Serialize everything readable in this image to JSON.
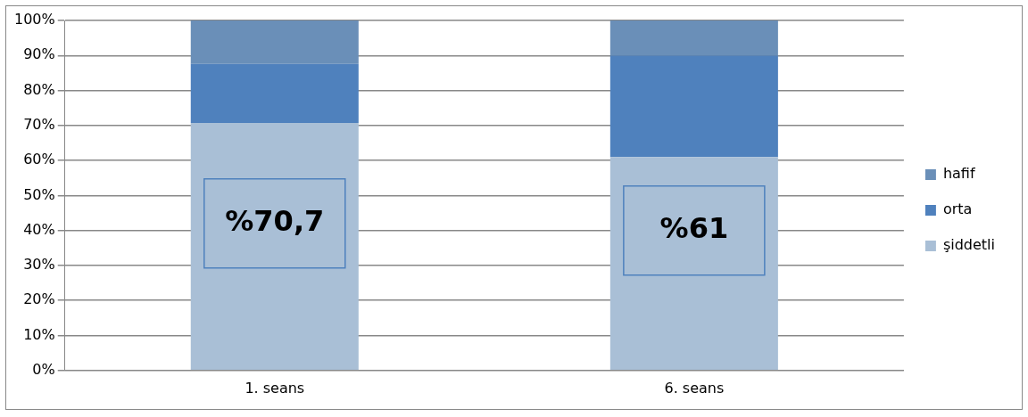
{
  "chart_data": {
    "type": "bar",
    "stacked": true,
    "categories": [
      "1. seans",
      "6. seans"
    ],
    "series": [
      {
        "name": "şiddetli",
        "color": "#a9bfd6",
        "values": [
          70.7,
          61
        ]
      },
      {
        "name": "orta",
        "color": "#4f81bd",
        "values": [
          16.9,
          29
        ]
      },
      {
        "name": "hafif",
        "color": "#6a8fb8",
        "values": [
          12.4,
          10
        ]
      }
    ],
    "ylim": [
      0,
      100
    ],
    "yticks": [
      {
        "value": 0,
        "label": "0%"
      },
      {
        "value": 10,
        "label": "10%"
      },
      {
        "value": 20,
        "label": "20%"
      },
      {
        "value": 30,
        "label": "30%"
      },
      {
        "value": 40,
        "label": "40%"
      },
      {
        "value": 50,
        "label": "50%"
      },
      {
        "value": 60,
        "label": "60%"
      },
      {
        "value": 70,
        "label": "70%"
      },
      {
        "value": 80,
        "label": "80%"
      },
      {
        "value": 90,
        "label": "90%"
      },
      {
        "value": 100,
        "label": "100%"
      }
    ],
    "grid": "y",
    "legend": "right",
    "annotations": [
      "%70,7",
      "%61"
    ]
  }
}
